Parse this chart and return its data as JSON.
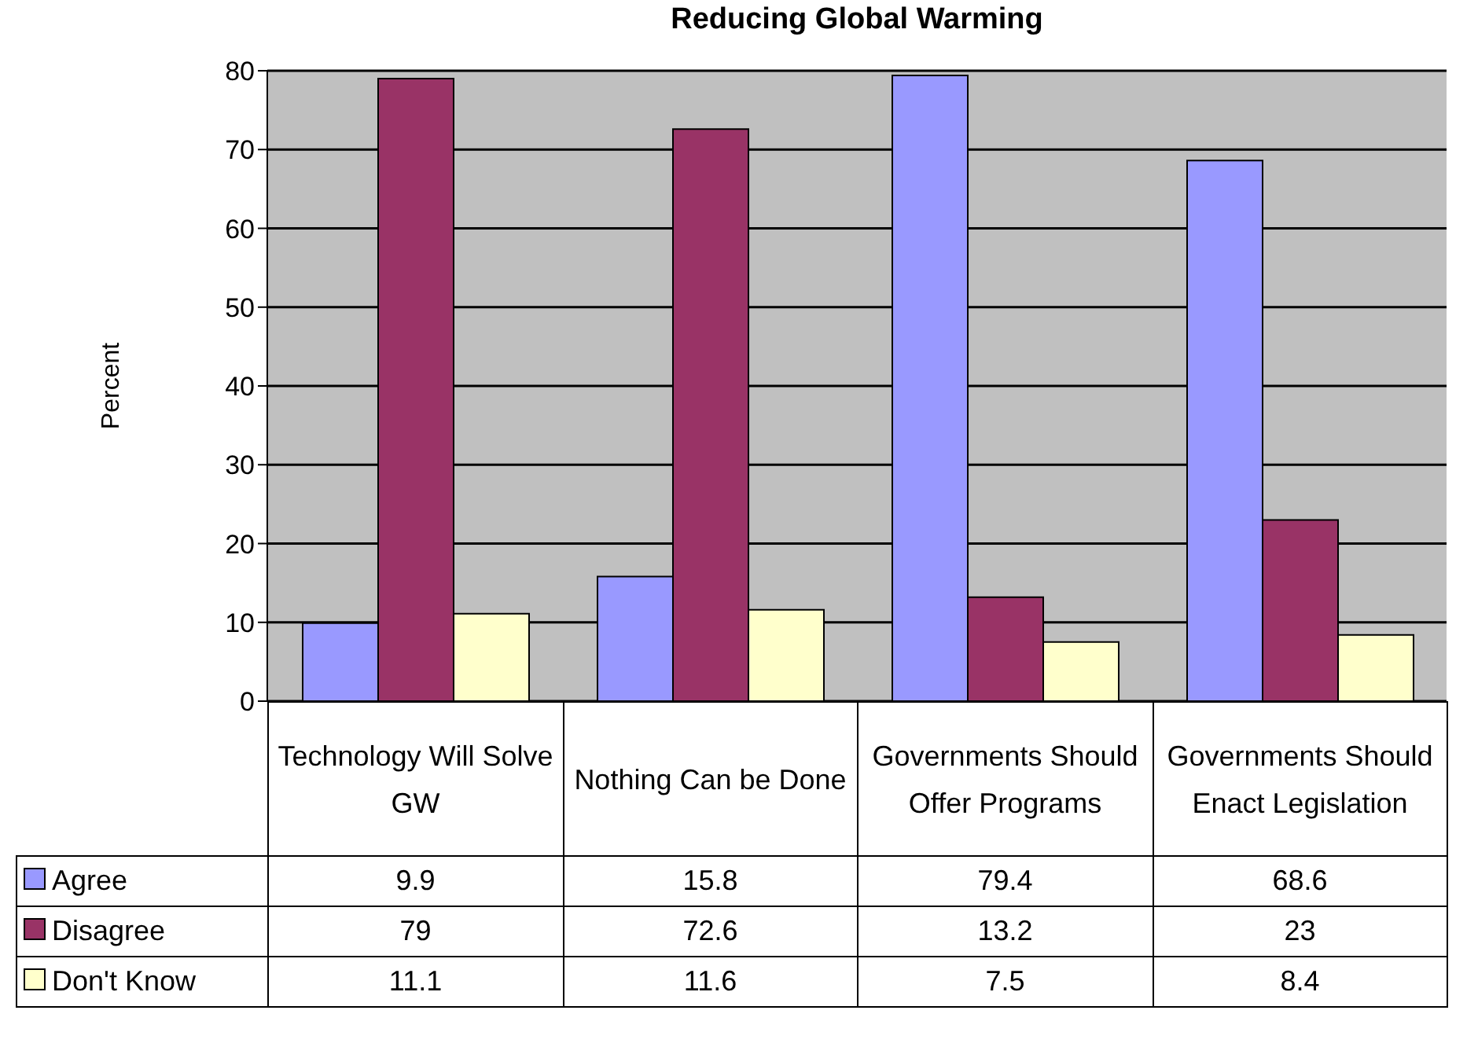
{
  "chart_data": {
    "type": "bar",
    "title": "Reducing Global Warming",
    "ylabel": "Percent",
    "categories": [
      "Technology Will Solve GW",
      "Nothing Can be Done",
      "Governments Should Offer Programs",
      "Governments Should Enact Legislation"
    ],
    "series": [
      {
        "name": "Agree",
        "color": "#9999ff",
        "values": [
          9.9,
          15.8,
          79.4,
          68.6
        ]
      },
      {
        "name": "Disagree",
        "color": "#993366",
        "values": [
          79,
          72.6,
          13.2,
          23
        ]
      },
      {
        "name": "Don't Know",
        "color": "#ffffcc",
        "values": [
          11.1,
          11.6,
          7.5,
          8.4
        ]
      }
    ],
    "ylim": [
      0,
      80
    ],
    "yticks": [
      0,
      10,
      20,
      30,
      40,
      50,
      60,
      70,
      80
    ],
    "grid": "y",
    "legend": "bottom",
    "data_labels": true
  }
}
